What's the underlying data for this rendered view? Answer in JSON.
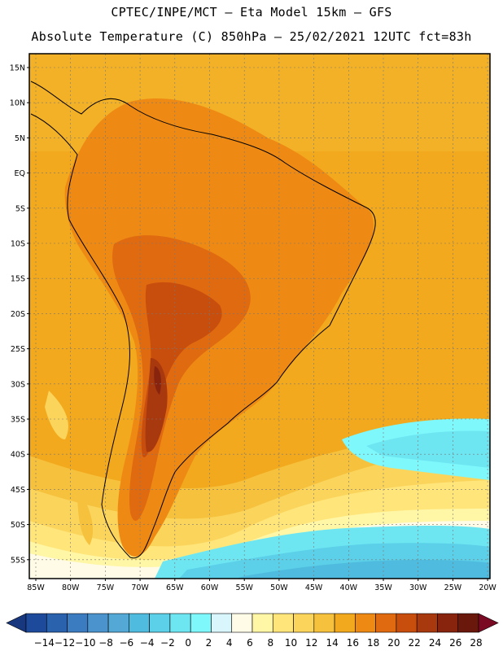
{
  "header": {
    "line1": "CPTEC/INPE/MCT –  Eta Model 15km – GFS",
    "line2": "Absolute Temperature (C) 850hPa – 25/02/2021 12UTC fct=83h"
  },
  "map": {
    "lat_labels": [
      "15N",
      "10N",
      "5N",
      "EQ",
      "5S",
      "10S",
      "15S",
      "20S",
      "25S",
      "30S",
      "35S",
      "40S",
      "45S",
      "50S",
      "55S"
    ],
    "lon_labels": [
      "85W",
      "80W",
      "75W",
      "70W",
      "65W",
      "60W",
      "55W",
      "50W",
      "45W",
      "40W",
      "35W",
      "30W",
      "25W",
      "20W"
    ]
  },
  "colorbar": {
    "labels": [
      "-14",
      "-12",
      "-10",
      "-8",
      "-6",
      "-4",
      "-2",
      "0",
      "2",
      "4",
      "6",
      "8",
      "10",
      "12",
      "14",
      "16",
      "18",
      "20",
      "22",
      "24",
      "26",
      "28"
    ],
    "colors": [
      "#1e4a9c",
      "#2a62ae",
      "#3b7cc0",
      "#4a93cc",
      "#53a8d6",
      "#4fbcdf",
      "#5bd0e8",
      "#6ee6f2",
      "#7ef8fb",
      "#d8f6fb",
      "#fffbe6",
      "#fff6a6",
      "#ffe57a",
      "#fbd45c",
      "#f6c13c",
      "#f2a91d",
      "#ee8a14",
      "#e06a10",
      "#c84e0e",
      "#a8380e",
      "#88240e",
      "#6a180c"
    ],
    "low_arrow_color": "#17387f",
    "high_arrow_color": "#7a0a24"
  }
}
